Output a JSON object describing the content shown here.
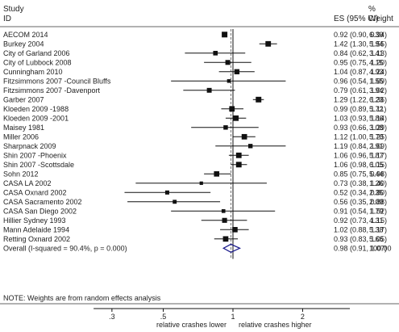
{
  "header": {
    "study_line1": "Study",
    "study_line2": "ID",
    "es_label": "ES (95% CI)",
    "weight_line1": "%",
    "weight_line2": "Weight"
  },
  "chart_data": {
    "type": "forest",
    "x_scale": "log",
    "xlim": [
      0.25,
      3.2
    ],
    "xticks": [
      {
        "value": 0.3,
        "label": ".3"
      },
      {
        "value": 0.5,
        "label": ".5"
      },
      {
        "value": 1,
        "label": "1"
      },
      {
        "value": 2,
        "label": "2"
      }
    ],
    "reference_line": 1,
    "pooled_line": 0.98,
    "xlabel_left": "relative crashes lower",
    "xlabel_right": "relative crashes higher",
    "studies": [
      {
        "label": "AECOM 2014",
        "es": 0.92,
        "lo": 0.9,
        "hi": 0.94,
        "ci_text": "0.92 (0.90, 0.94)",
        "weight": "6.39"
      },
      {
        "label": "Burkey 2004",
        "es": 1.42,
        "lo": 1.3,
        "hi": 1.55,
        "ci_text": "1.42 (1.30, 1.55)",
        "weight": "5.94"
      },
      {
        "label": "City of Garland 2006",
        "es": 0.84,
        "lo": 0.62,
        "hi": 1.13,
        "ci_text": "0.84 (0.62, 1.13)",
        "weight": "3.41"
      },
      {
        "label": "City of Lubbock 2008",
        "es": 0.95,
        "lo": 0.75,
        "hi": 1.2,
        "ci_text": "0.95 (0.75, 1.20)",
        "weight": "4.15"
      },
      {
        "label": "Cunningham 2010",
        "es": 1.04,
        "lo": 0.87,
        "hi": 1.24,
        "ci_text": "1.04 (0.87, 1.24)",
        "weight": "4.93"
      },
      {
        "label": "Fitzsimmons 2007 -Council Bluffs",
        "es": 0.96,
        "lo": 0.54,
        "hi": 1.69,
        "ci_text": "0.96 (0.54, 1.69)",
        "weight": "1.55"
      },
      {
        "label": "Fitzsimmons 2007 -Davenport",
        "es": 0.79,
        "lo": 0.61,
        "hi": 1.02,
        "ci_text": "0.79 (0.61, 1.02)",
        "weight": "3.94"
      },
      {
        "label": "Garber 2007",
        "es": 1.29,
        "lo": 1.22,
        "hi": 1.36,
        "ci_text": "1.29 (1.22, 1.36)",
        "weight": "6.23"
      },
      {
        "label": "Kloeden 2009 -1988",
        "es": 0.99,
        "lo": 0.89,
        "hi": 1.11,
        "ci_text": "0.99 (0.89, 1.11)",
        "weight": "5.72"
      },
      {
        "label": "Kloeden 2009 -2001",
        "es": 1.03,
        "lo": 0.93,
        "hi": 1.14,
        "ci_text": "1.03 (0.93, 1.14)",
        "weight": "5.86"
      },
      {
        "label": "Maisey 1981",
        "es": 0.93,
        "lo": 0.66,
        "hi": 1.29,
        "ci_text": "0.93 (0.66, 1.29)",
        "weight": "3.08"
      },
      {
        "label": "Miller 2006",
        "es": 1.12,
        "lo": 1.0,
        "hi": 1.25,
        "ci_text": "1.12 (1.00, 1.25)",
        "weight": "5.70"
      },
      {
        "label": "Sharpnack 2009",
        "es": 1.19,
        "lo": 0.84,
        "hi": 1.69,
        "ci_text": "1.19 (0.84, 1.69)",
        "weight": "2.91"
      },
      {
        "label": "Shin 2007 -Phoenix",
        "es": 1.06,
        "lo": 0.96,
        "hi": 1.17,
        "ci_text": "1.06 (0.96, 1.17)",
        "weight": "5.87"
      },
      {
        "label": "Shin 2007 -Scottsdale",
        "es": 1.06,
        "lo": 0.98,
        "hi": 1.15,
        "ci_text": "1.06 (0.98, 1.15)",
        "weight": "6.05"
      },
      {
        "label": "Sohn 2012",
        "es": 0.85,
        "lo": 0.75,
        "hi": 0.98,
        "ci_text": "0.85 (0.75, 0.98)",
        "weight": "5.44"
      },
      {
        "label": "CASA LA 2002",
        "es": 0.73,
        "lo": 0.38,
        "hi": 1.4,
        "ci_text": "0.73 (0.38, 1.40)",
        "weight": "1.26"
      },
      {
        "label": "CASA Oxnard 2002",
        "es": 0.52,
        "lo": 0.34,
        "hi": 0.8,
        "ci_text": "0.52 (0.34, 0.80)",
        "weight": "2.35"
      },
      {
        "label": "CASA Sacramento 2002",
        "es": 0.56,
        "lo": 0.35,
        "hi": 0.88,
        "ci_text": "0.56 (0.35, 0.88)",
        "weight": "2.09"
      },
      {
        "label": "CASA San Diego 2002",
        "es": 0.91,
        "lo": 0.54,
        "hi": 1.52,
        "ci_text": "0.91 (0.54, 1.52)",
        "weight": "1.79"
      },
      {
        "label": "Hillier Sydney 1993",
        "es": 0.92,
        "lo": 0.73,
        "hi": 1.15,
        "ci_text": "0.92 (0.73, 1.15)",
        "weight": "4.31"
      },
      {
        "label": "Mann Adelaide 1994",
        "es": 1.02,
        "lo": 0.88,
        "hi": 1.17,
        "ci_text": "1.02 (0.88, 1.17)",
        "weight": "5.38"
      },
      {
        "label": "Retting Oxnard 2002",
        "es": 0.93,
        "lo": 0.83,
        "hi": 1.05,
        "ci_text": "0.93 (0.83, 1.05)",
        "weight": "5.66"
      }
    ],
    "overall": {
      "label": "Overall  (I-squared = 90.4%, p = 0.000)",
      "es": 0.98,
      "lo": 0.91,
      "hi": 1.07,
      "ci_text": "0.98 (0.91, 1.07)",
      "weight": "100.00",
      "diamond_color": "#1a1a8c"
    },
    "note": "NOTE: Weights are from random effects analysis"
  }
}
